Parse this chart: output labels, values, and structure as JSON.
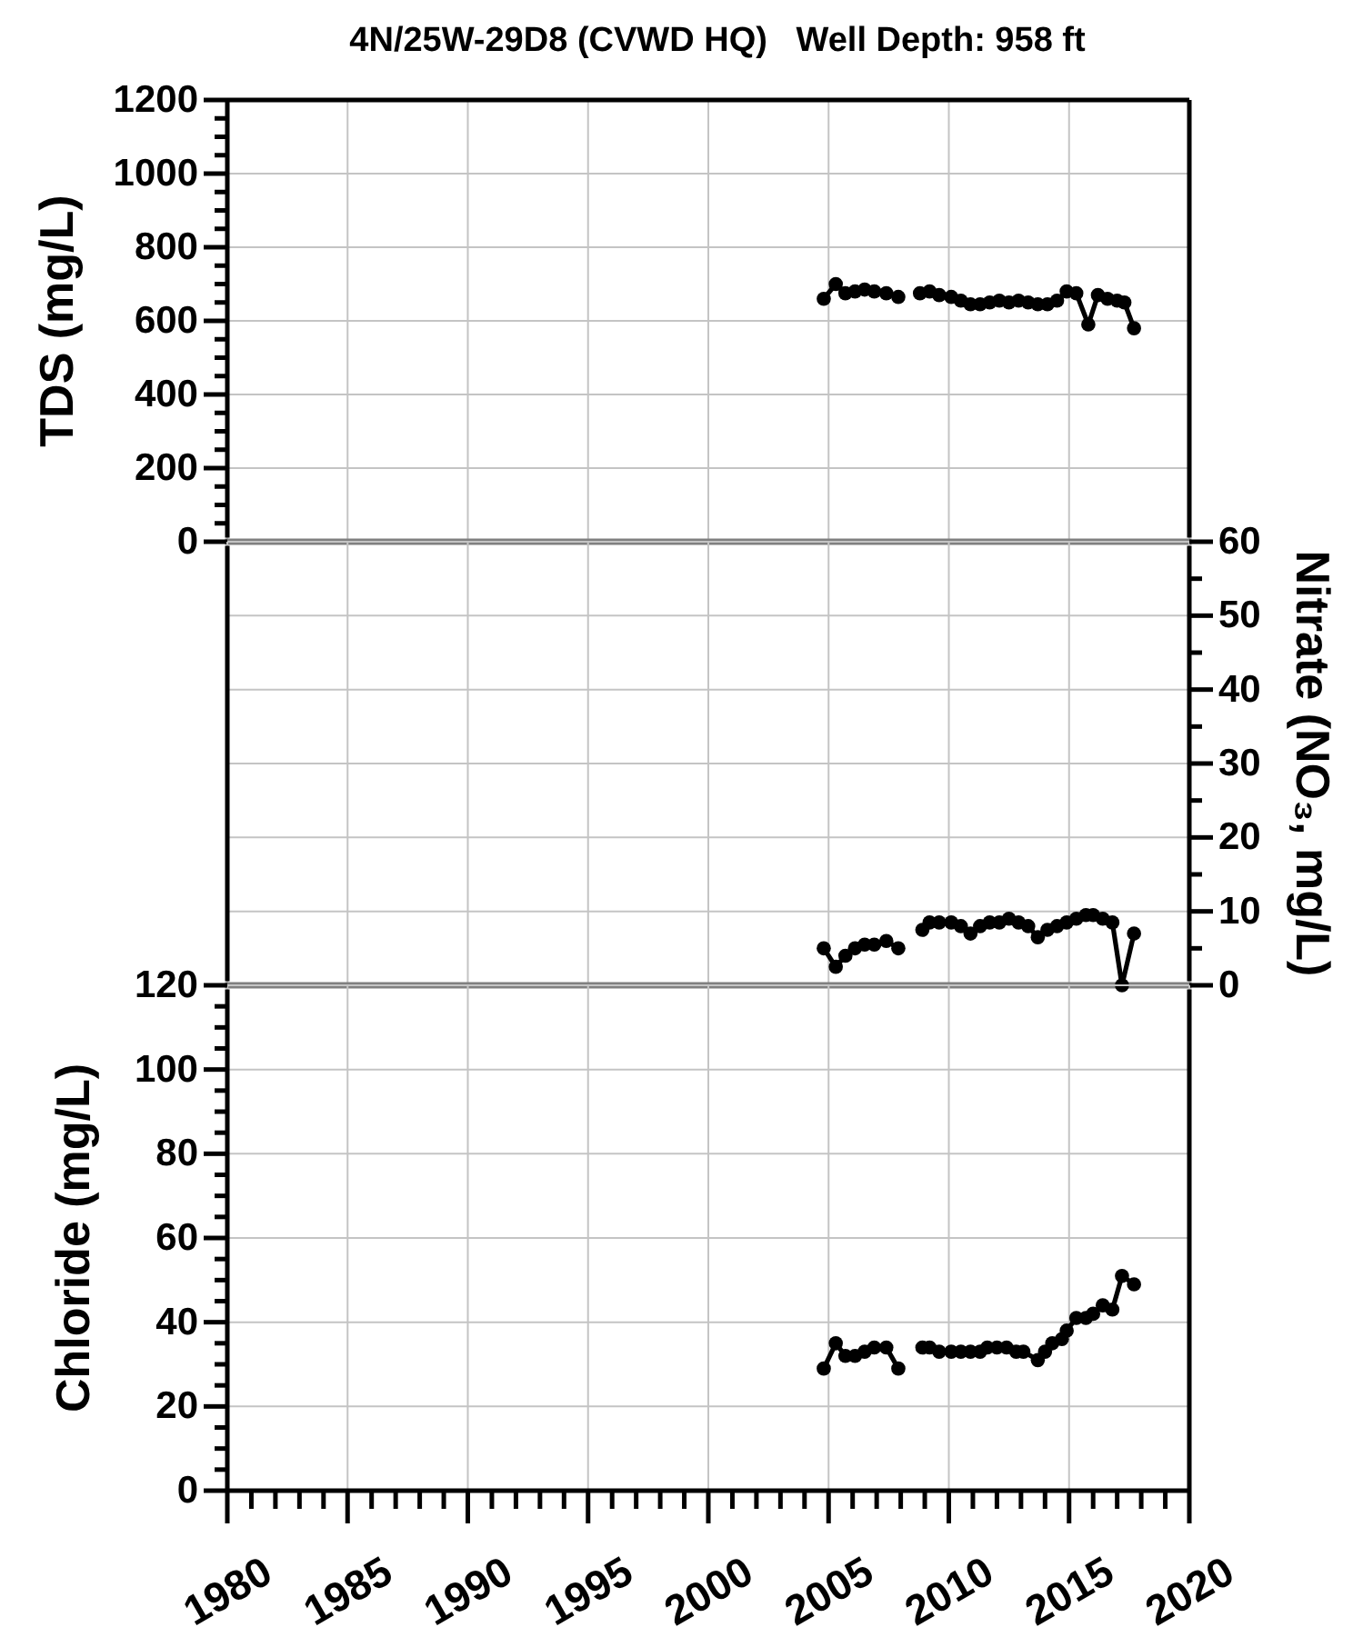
{
  "chart_data": [
    {
      "type": "line",
      "title": "4N/25W-29D8 (CVWD HQ)   Well Depth: 958 ft",
      "ylabel": "TDS (mg/L)",
      "x": [
        2004.8,
        2005.3,
        2005.7,
        2006.1,
        2006.5,
        2006.9,
        2007.4,
        2007.9,
        2008.4,
        2008.8,
        2009.2,
        2009.6,
        2010.1,
        2010.5,
        2010.9,
        2011.3,
        2011.7,
        2012.1,
        2012.5,
        2012.9,
        2013.3,
        2013.7,
        2014.1,
        2014.5,
        2014.9,
        2015.3,
        2015.8,
        2016.2,
        2016.6,
        2017.0,
        2017.3,
        2017.7
      ],
      "values": [
        660,
        700,
        675,
        680,
        685,
        680,
        675,
        665,
        null,
        675,
        680,
        670,
        665,
        655,
        645,
        645,
        650,
        655,
        650,
        655,
        650,
        645,
        645,
        655,
        680,
        675,
        590,
        670,
        660,
        655,
        650,
        580
      ],
      "color": "#000000",
      "marker": "circle",
      "xlim": [
        1980,
        2020
      ],
      "xticks": [
        1980,
        1985,
        1990,
        1995,
        2000,
        2005,
        2010,
        2015,
        2020
      ],
      "ylim": [
        0,
        1200
      ],
      "yticks": [
        0,
        {
          "value": 50,
          "label": null
        },
        {
          "value": 100,
          "label": null
        },
        {
          "value": 150,
          "label": null
        },
        200,
        {
          "value": 250,
          "label": null
        },
        {
          "value": 300,
          "label": null
        },
        {
          "value": 350,
          "label": null
        },
        400,
        {
          "value": 450,
          "label": null
        },
        {
          "value": 500,
          "label": null
        },
        {
          "value": 550,
          "label": null
        },
        600,
        {
          "value": 650,
          "label": null
        },
        {
          "value": 700,
          "label": null
        },
        {
          "value": 750,
          "label": null
        },
        800,
        {
          "value": 850,
          "label": null
        },
        {
          "value": 900,
          "label": null
        },
        {
          "value": 950,
          "label": null
        },
        1000,
        {
          "value": 1050,
          "label": null
        },
        {
          "value": 1100,
          "label": null
        },
        {
          "value": 1150,
          "label": null
        },
        1200
      ],
      "grid": true,
      "tick_labels": "y"
    },
    {
      "type": "line",
      "ylabel": "Nitrate (NO₃, mg/L)",
      "x": [
        2004.8,
        2005.3,
        2005.7,
        2006.1,
        2006.5,
        2006.9,
        2007.4,
        2007.9,
        2008.4,
        2008.9,
        2009.2,
        2009.6,
        2010.1,
        2010.5,
        2010.9,
        2011.3,
        2011.7,
        2012.1,
        2012.5,
        2012.9,
        2013.3,
        2013.7,
        2014.1,
        2014.5,
        2014.9,
        2015.3,
        2015.7,
        2016.0,
        2016.4,
        2016.8,
        2017.2,
        2017.7
      ],
      "values": [
        5,
        2.5,
        4,
        5,
        5.5,
        5.5,
        6,
        5,
        null,
        7.5,
        8.5,
        8.5,
        8.5,
        8,
        7,
        8,
        8.5,
        8.5,
        9,
        8.5,
        8,
        6.5,
        7.5,
        8,
        8.5,
        9,
        9.5,
        9.5,
        9,
        8.5,
        0,
        7
      ],
      "color": "#000000",
      "marker": "circle",
      "xlim": [
        1980,
        2020
      ],
      "xticks": [
        1980,
        1985,
        1990,
        1995,
        2000,
        2005,
        2010,
        2015,
        2020
      ],
      "ylim": [
        0,
        60
      ],
      "yticks": [
        0,
        {
          "value": 5,
          "label": null
        },
        10,
        {
          "value": 15,
          "label": null
        },
        20,
        {
          "value": 25,
          "label": null
        },
        30,
        {
          "value": 35,
          "label": null
        },
        40,
        {
          "value": 45,
          "label": null
        },
        50,
        {
          "value": 55,
          "label": null
        },
        60
      ],
      "grid": true,
      "tick_labels": "y"
    },
    {
      "type": "line",
      "ylabel": "Chloride (mg/L)",
      "x": [
        2004.8,
        2005.3,
        2005.7,
        2006.1,
        2006.5,
        2006.9,
        2007.4,
        2007.9,
        2008.4,
        2008.9,
        2009.2,
        2009.6,
        2010.1,
        2010.5,
        2010.9,
        2011.3,
        2011.6,
        2012.0,
        2012.4,
        2012.8,
        2013.1,
        2013.7,
        2014.0,
        2014.3,
        2014.7,
        2014.9,
        2015.3,
        2015.7,
        2016.0,
        2016.4,
        2016.8,
        2017.2,
        2017.7
      ],
      "values": [
        29,
        35,
        32,
        32,
        33,
        34,
        34,
        29,
        null,
        34,
        34,
        33,
        33,
        33,
        33,
        33,
        34,
        34,
        34,
        33,
        33,
        31,
        33,
        35,
        36,
        38,
        41,
        41,
        42,
        44,
        43,
        51,
        49
      ],
      "color": "#000000",
      "marker": "circle",
      "xlim": [
        1980,
        2020
      ],
      "xticks": [
        1980,
        {
          "value": 1981,
          "label": null
        },
        {
          "value": 1982,
          "label": null
        },
        {
          "value": 1983,
          "label": null
        },
        {
          "value": 1984,
          "label": null
        },
        1985,
        {
          "value": 1986,
          "label": null
        },
        {
          "value": 1987,
          "label": null
        },
        {
          "value": 1988,
          "label": null
        },
        {
          "value": 1989,
          "label": null
        },
        1990,
        {
          "value": 1991,
          "label": null
        },
        {
          "value": 1992,
          "label": null
        },
        {
          "value": 1993,
          "label": null
        },
        {
          "value": 1994,
          "label": null
        },
        1995,
        {
          "value": 1996,
          "label": null
        },
        {
          "value": 1997,
          "label": null
        },
        {
          "value": 1998,
          "label": null
        },
        {
          "value": 1999,
          "label": null
        },
        2000,
        {
          "value": 2001,
          "label": null
        },
        {
          "value": 2002,
          "label": null
        },
        {
          "value": 2003,
          "label": null
        },
        {
          "value": 2004,
          "label": null
        },
        2005,
        {
          "value": 2006,
          "label": null
        },
        {
          "value": 2007,
          "label": null
        },
        {
          "value": 2008,
          "label": null
        },
        {
          "value": 2009,
          "label": null
        },
        2010,
        {
          "value": 2011,
          "label": null
        },
        {
          "value": 2012,
          "label": null
        },
        {
          "value": 2013,
          "label": null
        },
        {
          "value": 2014,
          "label": null
        },
        2015,
        {
          "value": 2016,
          "label": null
        },
        {
          "value": 2017,
          "label": null
        },
        {
          "value": 2018,
          "label": null
        },
        {
          "value": 2019,
          "label": null
        },
        2020
      ],
      "ylim": [
        0,
        120
      ],
      "yticks": [
        0,
        {
          "value": 5,
          "label": null
        },
        {
          "value": 10,
          "label": null
        },
        {
          "value": 15,
          "label": null
        },
        20,
        {
          "value": 25,
          "label": null
        },
        {
          "value": 30,
          "label": null
        },
        {
          "value": 35,
          "label": null
        },
        40,
        {
          "value": 45,
          "label": null
        },
        {
          "value": 50,
          "label": null
        },
        {
          "value": 55,
          "label": null
        },
        60,
        {
          "value": 65,
          "label": null
        },
        {
          "value": 70,
          "label": null
        },
        {
          "value": 75,
          "label": null
        },
        80,
        {
          "value": 85,
          "label": null
        },
        {
          "value": 90,
          "label": null
        },
        {
          "value": 95,
          "label": null
        },
        100,
        {
          "value": 105,
          "label": null
        },
        {
          "value": 110,
          "label": null
        },
        {
          "value": 115,
          "label": null
        },
        120
      ],
      "grid": true
    }
  ]
}
